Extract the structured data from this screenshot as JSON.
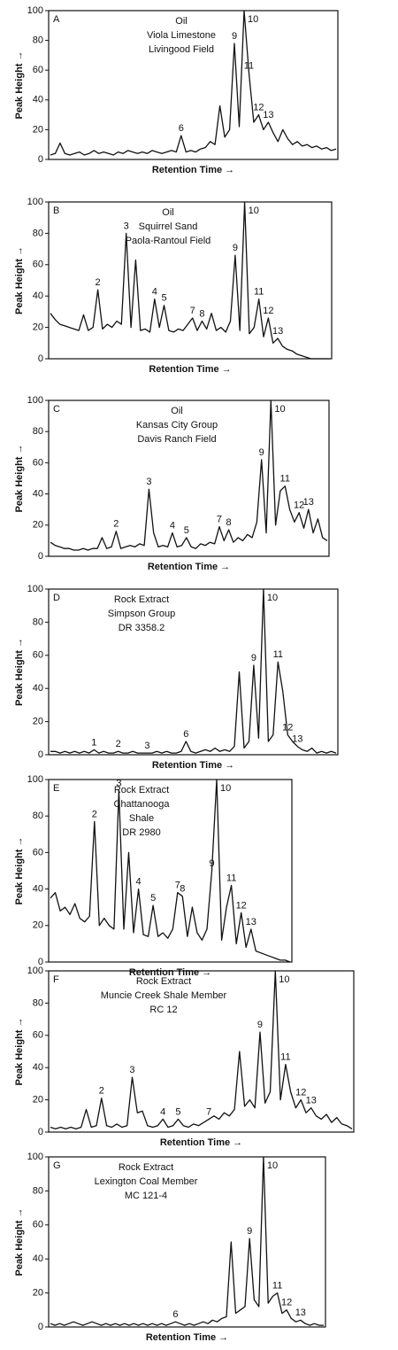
{
  "chart_data": [
    {
      "type": "line",
      "label": "A",
      "title_lines": [
        "Oil",
        "Viola Limestone",
        "Livingood Field"
      ],
      "y_label": "Peak Height →",
      "x_label": "Retention Time →",
      "ylim": [
        0,
        100
      ],
      "yticks": [
        0,
        20,
        40,
        60,
        80,
        100
      ],
      "color": "#111111",
      "values": [
        3,
        4,
        11,
        4,
        3,
        4,
        5,
        3,
        4,
        6,
        4,
        5,
        4,
        3,
        5,
        4,
        6,
        5,
        4,
        5,
        4,
        6,
        5,
        4,
        5,
        6,
        5,
        16,
        5,
        6,
        5,
        7,
        8,
        12,
        10,
        36,
        15,
        20,
        78,
        22,
        100,
        58,
        25,
        30,
        20,
        25,
        18,
        12,
        20,
        14,
        10,
        12,
        9,
        10,
        8,
        9,
        7,
        8,
        6,
        7
      ],
      "peak_labels": [
        null,
        null,
        null,
        null,
        null,
        null,
        null,
        null,
        null,
        null,
        null,
        null,
        null,
        null,
        null,
        null,
        null,
        null,
        null,
        null,
        null,
        null,
        null,
        null,
        null,
        null,
        null,
        "6",
        null,
        null,
        null,
        null,
        null,
        null,
        null,
        null,
        null,
        null,
        "9",
        null,
        "10",
        "11",
        null,
        "12",
        null,
        "13",
        null,
        null,
        null,
        null,
        null,
        null,
        null,
        null,
        null,
        null,
        null,
        null,
        null,
        null
      ]
    },
    {
      "type": "line",
      "label": "B",
      "title_lines": [
        "Oil",
        "Squirrel Sand",
        "Paola-Rantoul Field"
      ],
      "y_label": "Peak Height →",
      "x_label": "Retention Time →",
      "ylim": [
        0,
        100
      ],
      "yticks": [
        0,
        20,
        40,
        60,
        80,
        100
      ],
      "color": "#111111",
      "values": [
        29,
        25,
        22,
        21,
        20,
        19,
        18,
        28,
        18,
        20,
        44,
        19,
        22,
        20,
        24,
        22,
        80,
        20,
        63,
        18,
        19,
        17,
        38,
        20,
        34,
        18,
        17,
        19,
        18,
        22,
        26,
        18,
        24,
        19,
        29,
        18,
        20,
        17,
        24,
        66,
        18,
        100,
        16,
        20,
        38,
        14,
        26,
        10,
        13,
        8,
        6,
        5,
        3,
        2,
        1,
        0,
        0,
        0,
        0,
        0
      ],
      "peak_labels": [
        null,
        null,
        null,
        null,
        null,
        null,
        null,
        null,
        null,
        null,
        "2",
        null,
        null,
        null,
        null,
        null,
        "3",
        null,
        null,
        null,
        null,
        null,
        "4",
        null,
        "5",
        null,
        null,
        null,
        null,
        null,
        "7",
        null,
        "8",
        null,
        null,
        null,
        null,
        null,
        null,
        "9",
        null,
        "10",
        null,
        null,
        "11",
        null,
        "12",
        null,
        "13",
        null,
        null,
        null,
        null,
        null,
        null,
        null,
        null,
        null,
        null,
        null
      ]
    },
    {
      "type": "line",
      "label": "C",
      "title_lines": [
        "Oil",
        "Kansas City Group",
        "Davis Ranch Field"
      ],
      "y_label": "Peak Height →",
      "x_label": "Retention Time →",
      "ylim": [
        0,
        100
      ],
      "yticks": [
        0,
        20,
        40,
        60,
        80,
        100
      ],
      "color": "#111111",
      "values": [
        9,
        7,
        6,
        5,
        5,
        4,
        4,
        5,
        4,
        5,
        5,
        12,
        5,
        6,
        16,
        5,
        6,
        7,
        6,
        8,
        7,
        43,
        15,
        6,
        7,
        6,
        15,
        6,
        7,
        12,
        6,
        5,
        8,
        7,
        9,
        8,
        19,
        10,
        17,
        9,
        12,
        10,
        14,
        12,
        22,
        62,
        15,
        100,
        20,
        42,
        45,
        30,
        22,
        28,
        18,
        30,
        15,
        24,
        12,
        10
      ],
      "peak_labels": [
        null,
        null,
        null,
        null,
        null,
        null,
        null,
        null,
        null,
        null,
        null,
        null,
        null,
        null,
        "2",
        null,
        null,
        null,
        null,
        null,
        null,
        "3",
        null,
        null,
        null,
        null,
        "4",
        null,
        null,
        "5",
        null,
        null,
        null,
        null,
        null,
        null,
        "7",
        null,
        "8",
        null,
        null,
        null,
        null,
        null,
        null,
        "9",
        null,
        "10",
        null,
        null,
        "11",
        null,
        null,
        "12",
        null,
        "13",
        null,
        null,
        null,
        null
      ]
    },
    {
      "type": "line",
      "label": "D",
      "title_lines": [
        "Rock Extract",
        "Simpson Group",
        "DR 3358.2"
      ],
      "y_label": "Peak Height →",
      "x_label": "Retention Time →",
      "ylim": [
        0,
        100
      ],
      "yticks": [
        0,
        20,
        40,
        60,
        80,
        100
      ],
      "color": "#111111",
      "values": [
        2,
        2,
        1,
        2,
        1,
        2,
        1,
        2,
        1,
        3,
        1,
        2,
        1,
        1,
        2,
        1,
        1,
        2,
        1,
        1,
        1,
        1,
        2,
        1,
        2,
        1,
        1,
        2,
        8,
        2,
        1,
        2,
        3,
        2,
        4,
        2,
        3,
        2,
        5,
        50,
        4,
        8,
        54,
        10,
        100,
        8,
        12,
        56,
        38,
        12,
        8,
        5,
        3,
        2,
        4,
        1,
        2,
        1,
        2,
        1
      ],
      "peak_labels": [
        null,
        null,
        null,
        null,
        null,
        null,
        null,
        null,
        null,
        "1",
        null,
        null,
        null,
        null,
        "2",
        null,
        null,
        null,
        null,
        null,
        "3",
        null,
        null,
        null,
        null,
        null,
        null,
        null,
        "6",
        null,
        null,
        null,
        null,
        null,
        null,
        null,
        null,
        null,
        null,
        null,
        null,
        null,
        "9",
        null,
        "10",
        null,
        null,
        "11",
        null,
        "12",
        null,
        "13",
        null,
        null,
        null,
        null,
        null,
        null,
        null,
        null
      ]
    },
    {
      "type": "line",
      "label": "E",
      "title_lines": [
        "Rock Extract",
        "Chattanooga",
        "Shale",
        "DR 2980"
      ],
      "y_label": "Peak Height →",
      "x_label": "Retention Time →",
      "ylim": [
        0,
        100
      ],
      "yticks": [
        0,
        20,
        40,
        60,
        80,
        100
      ],
      "color": "#111111",
      "values": [
        35,
        38,
        28,
        30,
        26,
        32,
        24,
        22,
        25,
        77,
        20,
        24,
        20,
        18,
        94,
        18,
        60,
        16,
        40,
        15,
        14,
        31,
        14,
        16,
        13,
        18,
        38,
        36,
        14,
        30,
        16,
        12,
        18,
        50,
        100,
        12,
        30,
        42,
        10,
        27,
        8,
        18,
        6,
        5,
        4,
        3,
        2,
        1,
        1,
        0
      ],
      "peak_labels": [
        null,
        null,
        null,
        null,
        null,
        null,
        null,
        null,
        null,
        "2",
        null,
        null,
        null,
        null,
        "3",
        null,
        null,
        null,
        "4",
        null,
        null,
        "5",
        null,
        null,
        null,
        null,
        "7",
        "8",
        null,
        null,
        null,
        null,
        null,
        "9",
        "10",
        null,
        null,
        "11",
        null,
        "12",
        null,
        "13",
        null,
        null,
        null,
        null,
        null,
        null,
        null,
        null
      ]
    },
    {
      "type": "line",
      "label": "F",
      "title_lines": [
        "Rock Extract",
        "Muncie Creek Shale Member",
        "RC 12"
      ],
      "y_label": "Peak Height →",
      "x_label": "Retention Time →",
      "ylim": [
        0,
        100
      ],
      "yticks": [
        0,
        20,
        40,
        60,
        80,
        100
      ],
      "color": "#111111",
      "values": [
        3,
        2,
        3,
        2,
        3,
        2,
        3,
        14,
        3,
        4,
        21,
        4,
        3,
        5,
        3,
        4,
        34,
        12,
        13,
        4,
        3,
        4,
        8,
        3,
        4,
        8,
        4,
        3,
        5,
        4,
        6,
        8,
        10,
        8,
        12,
        10,
        14,
        50,
        16,
        20,
        15,
        62,
        18,
        25,
        100,
        20,
        42,
        25,
        15,
        20,
        12,
        15,
        10,
        8,
        11,
        6,
        9,
        5,
        4,
        2
      ],
      "peak_labels": [
        null,
        null,
        null,
        null,
        null,
        null,
        null,
        null,
        null,
        null,
        "2",
        null,
        null,
        null,
        null,
        null,
        "3",
        null,
        null,
        null,
        null,
        null,
        "4",
        null,
        null,
        "5",
        null,
        null,
        null,
        null,
        null,
        "7",
        null,
        null,
        null,
        null,
        null,
        null,
        null,
        null,
        null,
        "9",
        null,
        null,
        "10",
        null,
        "11",
        null,
        null,
        "12",
        null,
        "13",
        null,
        null,
        null,
        null,
        null,
        null,
        null,
        null
      ]
    },
    {
      "type": "line",
      "label": "G",
      "title_lines": [
        "Rock Extract",
        "Lexington Coal Member",
        "MC 121-4"
      ],
      "y_label": "Peak Height →",
      "x_label": "Retention Time →",
      "ylim": [
        0,
        100
      ],
      "yticks": [
        0,
        20,
        40,
        60,
        80,
        100
      ],
      "color": "#111111",
      "values": [
        2,
        1,
        2,
        1,
        2,
        3,
        2,
        1,
        2,
        3,
        2,
        1,
        2,
        1,
        2,
        1,
        2,
        1,
        2,
        1,
        2,
        1,
        2,
        1,
        2,
        1,
        2,
        3,
        2,
        1,
        2,
        1,
        2,
        3,
        2,
        4,
        3,
        5,
        6,
        50,
        8,
        10,
        12,
        52,
        16,
        12,
        100,
        14,
        18,
        20,
        8,
        10,
        5,
        3,
        4,
        2,
        1,
        2,
        1,
        1
      ],
      "peak_labels": [
        null,
        null,
        null,
        null,
        null,
        null,
        null,
        null,
        null,
        null,
        null,
        null,
        null,
        null,
        null,
        null,
        null,
        null,
        null,
        null,
        null,
        null,
        null,
        null,
        null,
        null,
        null,
        "6",
        null,
        null,
        null,
        null,
        null,
        null,
        null,
        null,
        null,
        null,
        null,
        null,
        null,
        null,
        null,
        "9",
        null,
        null,
        "10",
        null,
        null,
        "11",
        null,
        "12",
        null,
        null,
        "13",
        null,
        null,
        null,
        null,
        null
      ]
    }
  ]
}
